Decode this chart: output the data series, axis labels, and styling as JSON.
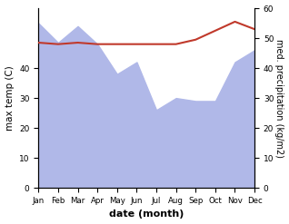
{
  "months": [
    1,
    2,
    3,
    4,
    5,
    6,
    7,
    8,
    9,
    10,
    11,
    12
  ],
  "month_labels": [
    "Jan",
    "Feb",
    "Mar",
    "Apr",
    "May",
    "Jun",
    "Jul",
    "Aug",
    "Sep",
    "Oct",
    "Nov",
    "Dec"
  ],
  "temp_max": [
    48.5,
    48.0,
    48.5,
    48.0,
    48.0,
    48.0,
    48.0,
    48.0,
    49.5,
    52.5,
    55.5,
    53.0
  ],
  "precip": [
    55.0,
    48.5,
    54.0,
    48.0,
    38.0,
    42.0,
    26.0,
    30.0,
    29.0,
    29.0,
    42.0,
    46.0
  ],
  "temp_ylim": [
    0,
    60
  ],
  "precip_ylim": [
    0,
    60
  ],
  "temp_yticks": [
    0,
    10,
    20,
    30,
    40
  ],
  "temp_yticklabels": [
    "0",
    "10",
    "20",
    "30",
    "40"
  ],
  "precip_yticks": [
    0,
    10,
    20,
    30,
    40,
    50,
    60
  ],
  "temp_color": "#c0392b",
  "precip_fill_color": "#b0b8e8",
  "xlabel": "date (month)",
  "ylabel_left": "max temp (C)",
  "ylabel_right": "med. precipitation (kg/m2)",
  "background_color": "#ffffff"
}
